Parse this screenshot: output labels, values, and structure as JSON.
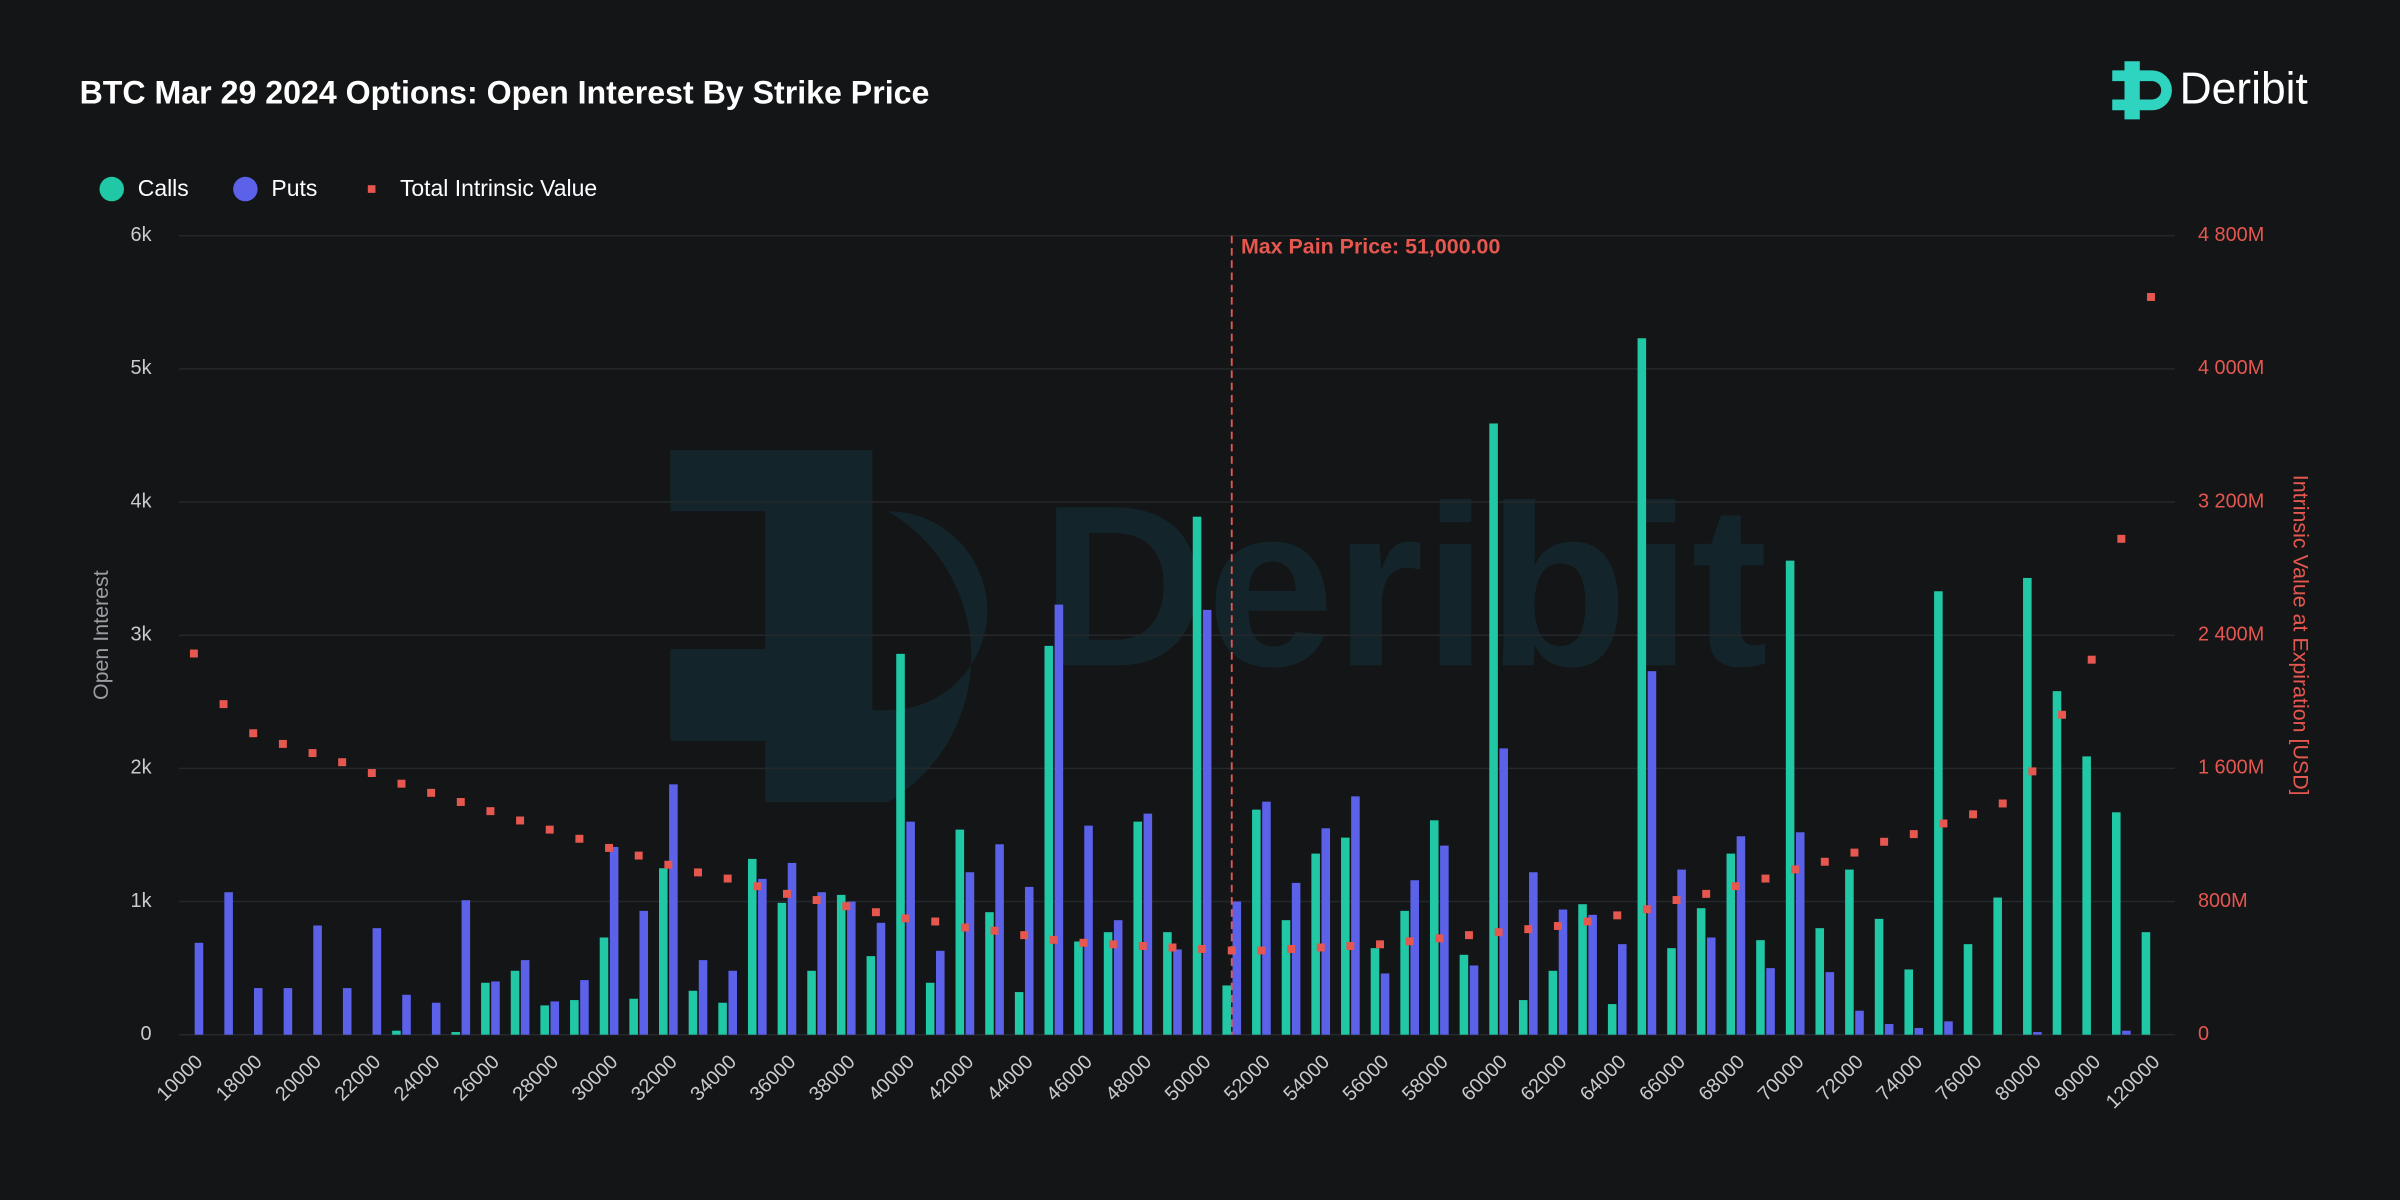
{
  "brand": "Deribit",
  "chart_data": {
    "type": "bar",
    "title": "BTC Mar 29 2024 Options: Open Interest By Strike Price",
    "ylabel": "Open Interest",
    "y2label": "Intrinsic Value at Expiration [USD]",
    "annotation": {
      "label": "Max Pain Price: 51,000.00",
      "value": 51000
    },
    "categories": [
      "10000",
      null,
      "18000",
      null,
      "20000",
      null,
      "22000",
      null,
      "24000",
      null,
      "26000",
      null,
      "28000",
      null,
      "30000",
      null,
      "32000",
      null,
      "34000",
      null,
      "36000",
      null,
      "38000",
      null,
      "40000",
      null,
      "42000",
      null,
      "44000",
      null,
      "46000",
      null,
      "48000",
      null,
      "50000",
      null,
      "52000",
      null,
      "54000",
      null,
      "56000",
      null,
      "58000",
      null,
      "60000",
      null,
      "62000",
      null,
      "64000",
      null,
      "66000",
      null,
      "68000",
      null,
      "70000",
      null,
      "72000",
      null,
      "74000",
      null,
      "76000",
      null,
      "80000",
      null,
      "90000",
      null,
      "120000"
    ],
    "series": [
      {
        "name": "Calls",
        "color": "#21c8a5",
        "values": [
          0,
          0,
          0,
          0,
          0,
          0,
          0,
          30,
          0,
          20,
          390,
          480,
          220,
          260,
          730,
          270,
          1250,
          330,
          240,
          1320,
          990,
          480,
          1050,
          590,
          2860,
          390,
          1540,
          920,
          320,
          2920,
          700,
          770,
          1600,
          770,
          3890,
          370,
          1690,
          860,
          1360,
          1480,
          650,
          930,
          1610,
          600,
          4590,
          260,
          480,
          980,
          230,
          5230,
          650,
          950,
          1360,
          710,
          3560,
          800,
          1240,
          870,
          490,
          3330,
          680,
          1030,
          3430,
          2580,
          2090,
          1670,
          770
        ]
      },
      {
        "name": "Puts",
        "color": "#5b61e8",
        "values": [
          690,
          1070,
          350,
          350,
          820,
          350,
          800,
          300,
          240,
          1010,
          400,
          560,
          250,
          410,
          1410,
          930,
          1880,
          560,
          480,
          1170,
          1290,
          1070,
          1000,
          840,
          1600,
          630,
          1220,
          1430,
          1110,
          3230,
          1570,
          860,
          1660,
          640,
          3190,
          1000,
          1750,
          1140,
          1550,
          1790,
          460,
          1160,
          1420,
          520,
          2150,
          1220,
          940,
          900,
          680,
          2730,
          1240,
          730,
          1490,
          500,
          1520,
          470,
          180,
          80,
          50,
          100,
          0,
          0,
          20,
          0,
          0,
          30,
          0
        ]
      },
      {
        "name": "Total Intrinsic Value",
        "color": "#e5574f",
        "axis": "y2",
        "values": [
          2290,
          1986,
          1811,
          1747,
          1692,
          1637,
          1572,
          1508,
          1453,
          1398,
          1343,
          1287,
          1232,
          1177,
          1122,
          1076,
          1021,
          975,
          938,
          892,
          846,
          809,
          772,
          736,
          699,
          680,
          644,
          625,
          598,
          570,
          552,
          543,
          533,
          524,
          515,
          506,
          506,
          515,
          524,
          533,
          543,
          561,
          579,
          598,
          616,
          634,
          653,
          680,
          717,
          754,
          809,
          846,
          892,
          938,
          993,
          1039,
          1094,
          1159,
          1205,
          1269,
          1324,
          1389,
          1582,
          1922,
          2253,
          2979,
          4432
        ]
      }
    ],
    "ylim": [
      0,
      6000
    ],
    "yticks": [
      0,
      {
        "value": 1000,
        "label": "1k"
      },
      {
        "value": 2000,
        "label": "2k"
      },
      {
        "value": 3000,
        "label": "3k"
      },
      {
        "value": 4000,
        "label": "4k"
      },
      {
        "value": 5000,
        "label": "5k"
      },
      {
        "value": 6000,
        "label": "6k"
      }
    ],
    "y2lim": [
      0,
      4800
    ],
    "y2ticks": [
      0,
      {
        "value": 800,
        "label": "800M"
      },
      {
        "value": 1600,
        "label": "1 600M"
      },
      {
        "value": 2400,
        "label": "2 400M"
      },
      {
        "value": 3200,
        "label": "3 200M"
      },
      {
        "value": 4000,
        "label": "4 000M"
      },
      {
        "value": 4800,
        "label": "4 800M"
      }
    ],
    "grid": true,
    "legend": "top-left"
  }
}
